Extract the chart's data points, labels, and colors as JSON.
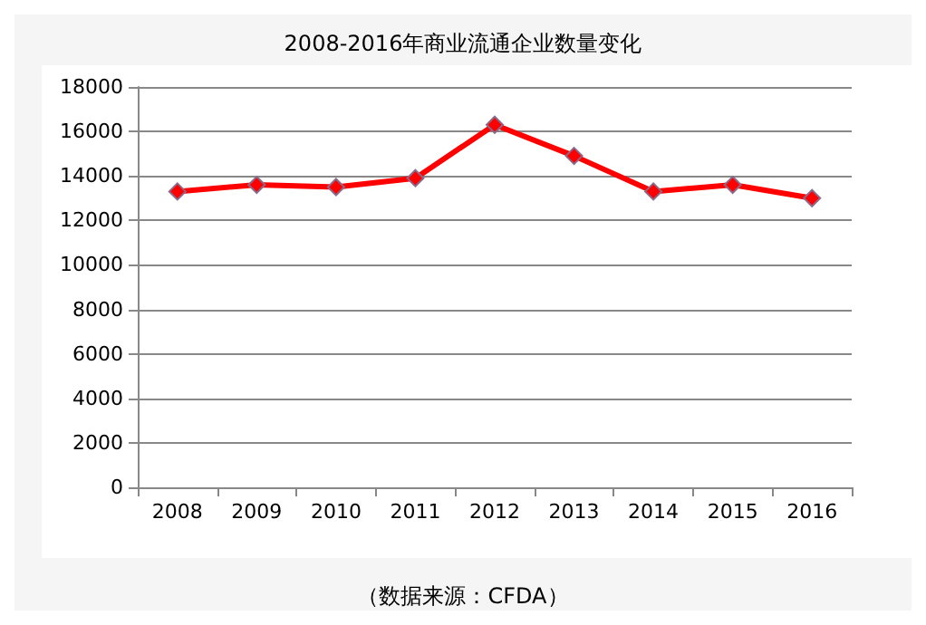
{
  "chart_data": {
    "type": "line",
    "title": "2008-2016年商业流通企业数量变化",
    "annotations": [
      "（数据来源：CFDA）"
    ],
    "categories": [
      "2008",
      "2009",
      "2010",
      "2011",
      "2012",
      "2013",
      "2014",
      "2015",
      "2016"
    ],
    "series": [
      {
        "color": "#ff0000",
        "values": [
          13300,
          13600,
          13500,
          13900,
          16300,
          14900,
          13300,
          13600,
          13000
        ]
      }
    ],
    "ylim": [
      0,
      18000
    ],
    "yticks": [
      0,
      2000,
      4000,
      6000,
      8000,
      10000,
      12000,
      14000,
      16000,
      18000
    ],
    "grid": "y",
    "marker": "diamond",
    "line_style": "solid"
  }
}
